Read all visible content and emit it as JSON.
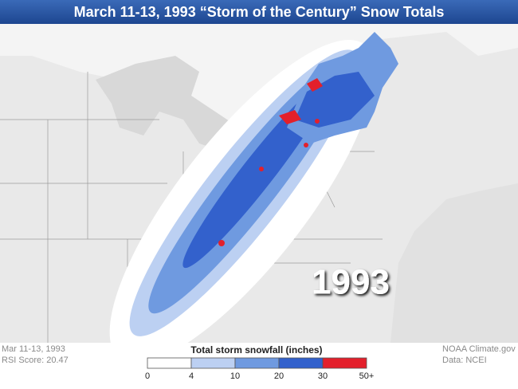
{
  "header": {
    "title": "March 11-13, 1993 “Storm of the Century” Snow Totals"
  },
  "map": {
    "year_label": "1993"
  },
  "legend": {
    "title": "Total storm snowfall (inches)",
    "ticks": [
      "0",
      "4",
      "10",
      "20",
      "30",
      "50+"
    ],
    "colors": [
      "#ffffff",
      "#bcd0f2",
      "#6f9ae0",
      "#3361cc",
      "#e3202b"
    ]
  },
  "footer": {
    "left": [
      "Mar 11-13, 1993",
      "RSI Score: 20.47"
    ],
    "right": [
      "NOAA Climate.gov",
      "Data: NCEI"
    ]
  }
}
